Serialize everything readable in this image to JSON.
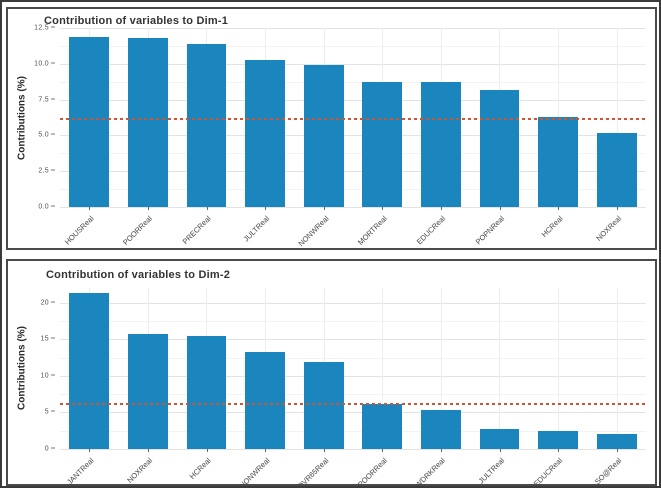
{
  "colors": {
    "bar_fill": "#1a86bd",
    "reference_line": "#cc5533",
    "grid_major": "#e3e3e3",
    "grid_minor": "#f3f3f3",
    "grid_vertical": "#ededed",
    "panel_border": "#4a4a4a"
  },
  "chart_data": [
    {
      "type": "bar",
      "title": "Contribution of variables to Dim-1",
      "xlabel": "",
      "ylabel": "Contributions (%)",
      "categories": [
        "HOUSReal",
        "POORReal",
        "PRECReal",
        "JULTReal",
        "NONWReal",
        "MORTReal",
        "EDUCReal",
        "POPNReal",
        "HCReal",
        "NOXReal"
      ],
      "values": [
        11.9,
        11.8,
        11.4,
        10.3,
        9.9,
        8.7,
        8.7,
        8.2,
        6.3,
        5.2
      ],
      "ylim": [
        0,
        12.5
      ],
      "ytick_values": [
        0,
        2.5,
        5,
        7.5,
        10,
        12.5
      ],
      "ytick_labels": [
        "0.0",
        "2.5",
        "5.0",
        "7.5",
        "10.0",
        "12.5"
      ],
      "reference_line": 6.25,
      "grid": true,
      "legend": "none"
    },
    {
      "type": "bar",
      "title": "Contribution of variables to Dim-2",
      "xlabel": "",
      "ylabel": "Contributions (%)",
      "categories": [
        "JANTReal",
        "NOXReal",
        "HCReal",
        "NONWReal",
        "OVR65Real",
        "POORReal",
        "WWDRKReal",
        "JULTReal",
        "EDUCReal",
        "SO@Real"
      ],
      "values": [
        21.3,
        15.7,
        15.5,
        13.3,
        11.9,
        6.1,
        5.3,
        2.8,
        2.5,
        2.1
      ],
      "ylim": [
        0,
        22
      ],
      "ytick_values": [
        0,
        5,
        10,
        15,
        20
      ],
      "ytick_labels": [
        "0",
        "5",
        "10",
        "15",
        "20"
      ],
      "reference_line": 6.25,
      "grid": true,
      "legend": "none"
    }
  ]
}
